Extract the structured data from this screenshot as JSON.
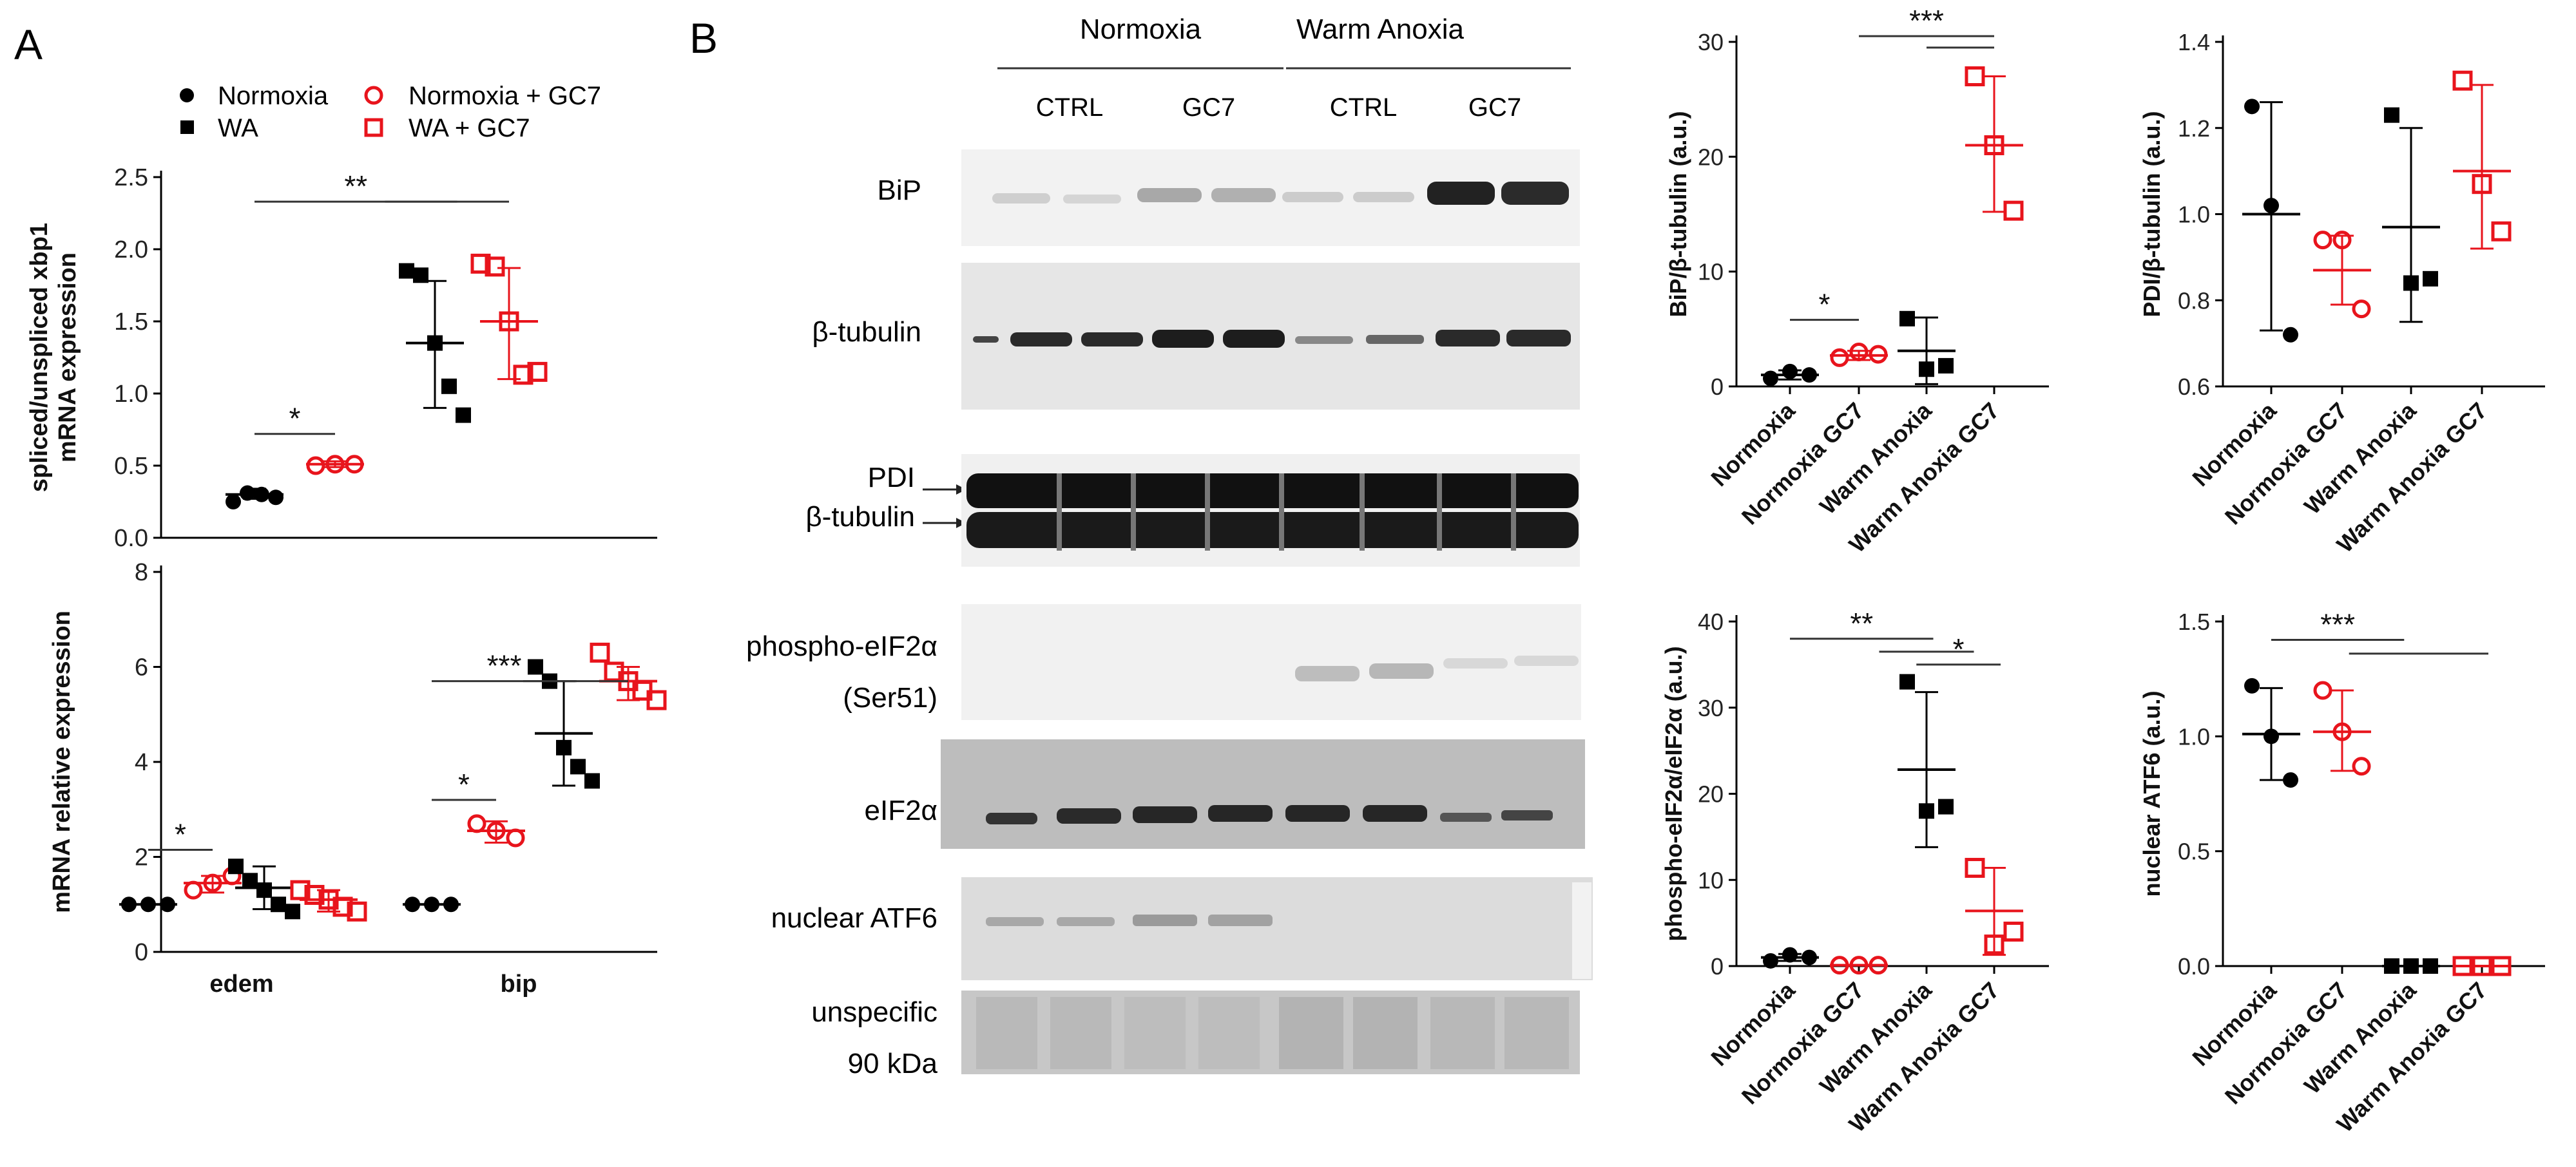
{
  "panel_a": {
    "label": "A",
    "legend": {
      "normoxia": "Normoxia",
      "wa": "WA",
      "normoxia_gc7": "Normoxia + GC7",
      "wa_gc7": "WA + GC7"
    }
  },
  "panel_b": {
    "label": "B",
    "blot": {
      "group_normoxia": "Normoxia",
      "group_warm_anoxia": "Warm Anoxia",
      "cond_ctrl": "CTRL",
      "cond_gc7": "GC7",
      "row_bip": "BiP",
      "row_btub": "β-tubulin",
      "row_pdi": "PDI",
      "row_btub2": "β-tubulin",
      "row_peif_1": "phospho-eIF2α",
      "row_peif_2": "(Ser51)",
      "row_eif": "eIF2α",
      "row_atf6": "nuclear ATF6",
      "row_unspec_1": "unspecific",
      "row_unspec_2": "90 kDa"
    }
  },
  "colors": {
    "control": "#000000",
    "gc7": "#e8141c"
  },
  "chart_data": [
    {
      "id": "xbp1",
      "type": "scatter",
      "ylabel": [
        "spliced/unspliced xbp1",
        "mRNA expression"
      ],
      "yticks": [
        "0.0",
        "0.5",
        "1.0",
        "1.5",
        "2.0",
        "2.5"
      ],
      "ylim": [
        0,
        2.5
      ],
      "categories": [
        "",
        "",
        "",
        ""
      ],
      "groups": [
        {
          "name": "Normoxia",
          "marker": "circle",
          "filled": true,
          "mean": 0.3,
          "err": [
            0.27,
            0.34
          ],
          "points": [
            0.25,
            0.31,
            0.3,
            0.28
          ]
        },
        {
          "name": "Normoxia + GC7",
          "marker": "circle",
          "filled": false,
          "mean": 0.51,
          "err": [
            0.49,
            0.53
          ],
          "points": [
            0.5,
            0.51,
            0.51
          ]
        },
        {
          "name": "WA",
          "marker": "square",
          "filled": true,
          "mean": 1.35,
          "err": [
            0.9,
            1.78
          ],
          "points": [
            1.85,
            1.82,
            1.35,
            1.05,
            0.85
          ]
        },
        {
          "name": "WA + GC7",
          "marker": "square",
          "filled": false,
          "mean": 1.5,
          "err": [
            1.1,
            1.87
          ],
          "points": [
            1.9,
            1.88,
            1.5,
            1.13,
            1.15
          ]
        }
      ],
      "annotations": [
        {
          "text": "*",
          "from": 0,
          "to": 1,
          "y": 0.72
        },
        {
          "text": "**",
          "from": 0,
          "to": 2.3,
          "y": 2.33
        },
        {
          "text": "",
          "from": 1.5,
          "to": 3,
          "y": 2.33
        }
      ]
    },
    {
      "id": "mrna",
      "type": "scatter",
      "ylabel": [
        "mRNA relative expression"
      ],
      "yticks": [
        "0",
        "2",
        "4",
        "6",
        "8"
      ],
      "ylim": [
        0,
        8
      ],
      "categories": [
        "edem",
        "bip"
      ],
      "groups": [
        {
          "name": "Normoxia",
          "category": "edem",
          "marker": "circle",
          "filled": true,
          "mean": 1.0,
          "err": [
            1.0,
            1.0
          ],
          "points": [
            1.0,
            1.0,
            1.0
          ]
        },
        {
          "name": "Normoxia + GC7",
          "category": "edem",
          "marker": "circle",
          "filled": false,
          "mean": 1.45,
          "err": [
            1.25,
            1.6
          ],
          "points": [
            1.3,
            1.45,
            1.6
          ]
        },
        {
          "name": "WA",
          "category": "edem",
          "marker": "square",
          "filled": true,
          "mean": 1.35,
          "err": [
            0.9,
            1.8
          ],
          "points": [
            1.8,
            1.5,
            1.3,
            1.0,
            0.85
          ]
        },
        {
          "name": "WA + GC7",
          "category": "edem",
          "marker": "square",
          "filled": false,
          "mean": 1.1,
          "err": [
            0.85,
            1.3
          ],
          "points": [
            1.3,
            1.2,
            1.1,
            0.95,
            0.85
          ]
        },
        {
          "name": "Normoxia",
          "category": "bip",
          "marker": "circle",
          "filled": true,
          "mean": 1.0,
          "err": [
            1.0,
            1.0
          ],
          "points": [
            1.0,
            1.0,
            1.0
          ]
        },
        {
          "name": "Normoxia + GC7",
          "category": "bip",
          "marker": "circle",
          "filled": false,
          "mean": 2.55,
          "err": [
            2.3,
            2.75
          ],
          "points": [
            2.7,
            2.55,
            2.4
          ]
        },
        {
          "name": "WA",
          "category": "bip",
          "marker": "square",
          "filled": true,
          "mean": 4.6,
          "err": [
            3.5,
            5.7
          ],
          "points": [
            6.0,
            5.7,
            4.3,
            3.9,
            3.6
          ]
        },
        {
          "name": "WA + GC7",
          "category": "bip",
          "marker": "square",
          "filled": false,
          "mean": 5.7,
          "err": [
            5.3,
            6.0
          ],
          "points": [
            6.3,
            5.9,
            5.7,
            5.5,
            5.3
          ]
        }
      ],
      "annotations": [
        {
          "text": "*",
          "from": 0,
          "to": 1,
          "y": 2.15
        },
        {
          "text": "*",
          "from": 4,
          "to": 5,
          "y": 3.2
        },
        {
          "text": "***",
          "from": 4,
          "to": 6.2,
          "y": 5.7
        },
        {
          "text": "",
          "from": 5.4,
          "to": 7,
          "y": 5.7
        }
      ]
    },
    {
      "id": "bip",
      "type": "scatter",
      "ylabel": [
        "BiP/β-tubulin (a.u.)"
      ],
      "yticks": [
        "0",
        "10",
        "20",
        "30"
      ],
      "ylim": [
        0,
        30
      ],
      "categories": [
        "Normoxia",
        "Normoxia GC7",
        "Warm Anoxia",
        "Warm Anoxia GC7"
      ],
      "groups": [
        {
          "name": "Normoxia",
          "marker": "circle",
          "filled": true,
          "mean": 1.0,
          "err": [
            0.6,
            1.4
          ],
          "points": [
            0.7,
            1.3,
            1.0
          ]
        },
        {
          "name": "Normoxia GC7",
          "marker": "circle",
          "filled": false,
          "mean": 2.7,
          "err": [
            2.3,
            3.1
          ],
          "points": [
            2.5,
            3.0,
            2.8
          ]
        },
        {
          "name": "Warm Anoxia",
          "marker": "square",
          "filled": true,
          "mean": 3.1,
          "err": [
            0.2,
            6.0
          ],
          "points": [
            5.9,
            1.5,
            1.8
          ]
        },
        {
          "name": "Warm Anoxia GC7",
          "marker": "square",
          "filled": false,
          "mean": 21.0,
          "err": [
            15.2,
            27.0
          ],
          "points": [
            27.0,
            21.0,
            15.3
          ]
        }
      ],
      "annotations": [
        {
          "text": "*",
          "from": 0,
          "to": 1,
          "y": 5.8
        },
        {
          "text": "***",
          "from": 1,
          "to": 3,
          "y": 30.5
        },
        {
          "text": "",
          "from": 2,
          "to": 3,
          "y": 29.5
        }
      ]
    },
    {
      "id": "pdi",
      "type": "scatter",
      "ylabel": [
        "PDI/β-tubulin (a.u.)"
      ],
      "yticks": [
        "0.6",
        "0.8",
        "1.0",
        "1.2",
        "1.4"
      ],
      "ylim": [
        0.6,
        1.4
      ],
      "categories": [
        "Normoxia",
        "Normoxia GC7",
        "Warm Anoxia",
        "Warm Anoxia GC7"
      ],
      "groups": [
        {
          "name": "Normoxia",
          "marker": "circle",
          "filled": true,
          "mean": 1.0,
          "err": [
            0.73,
            1.26
          ],
          "points": [
            1.25,
            1.02,
            0.72
          ]
        },
        {
          "name": "Normoxia GC7",
          "marker": "circle",
          "filled": false,
          "mean": 0.87,
          "err": [
            0.79,
            0.95
          ],
          "points": [
            0.94,
            0.94,
            0.78
          ]
        },
        {
          "name": "Warm Anoxia",
          "marker": "square",
          "filled": true,
          "mean": 0.97,
          "err": [
            0.75,
            1.2
          ],
          "points": [
            1.23,
            0.84,
            0.85
          ]
        },
        {
          "name": "Warm Anoxia GC7",
          "marker": "square",
          "filled": false,
          "mean": 1.1,
          "err": [
            0.92,
            1.3
          ],
          "points": [
            1.31,
            1.07,
            0.96
          ]
        }
      ],
      "annotations": []
    },
    {
      "id": "peif",
      "type": "scatter",
      "ylabel": [
        "phospho-eIF2α/eIF2α (a.u.)"
      ],
      "yticks": [
        "0",
        "10",
        "20",
        "30",
        "40"
      ],
      "ylim": [
        0,
        40
      ],
      "categories": [
        "Normoxia",
        "Normoxia GC7",
        "Warm Anoxia",
        "Warm Anoxia GC7"
      ],
      "groups": [
        {
          "name": "Normoxia",
          "marker": "circle",
          "filled": true,
          "mean": 1.0,
          "err": [
            0.6,
            1.4
          ],
          "points": [
            0.6,
            1.3,
            1.0
          ]
        },
        {
          "name": "Normoxia GC7",
          "marker": "circle",
          "filled": false,
          "mean": 0.1,
          "err": [
            0.1,
            0.1
          ],
          "points": [
            0.1,
            0.1,
            0.1
          ]
        },
        {
          "name": "Warm Anoxia",
          "marker": "square",
          "filled": true,
          "mean": 22.8,
          "err": [
            13.8,
            31.8
          ],
          "points": [
            33.0,
            18.0,
            18.5
          ]
        },
        {
          "name": "Warm Anoxia GC7",
          "marker": "square",
          "filled": false,
          "mean": 6.4,
          "err": [
            1.3,
            11.4
          ],
          "points": [
            11.4,
            2.5,
            4.0
          ]
        }
      ],
      "annotations": [
        {
          "text": "**",
          "from": 0,
          "to": 2.1,
          "y": 38.0
        },
        {
          "text": "",
          "from": 1.3,
          "to": 2.7,
          "y": 36.5
        },
        {
          "text": "*",
          "from": 1.85,
          "to": 3.1,
          "y": 35.0
        }
      ]
    },
    {
      "id": "atf6",
      "type": "scatter",
      "ylabel": [
        "nuclear ATF6 (a.u.)"
      ],
      "yticks": [
        "0.0",
        "0.5",
        "1.0",
        "1.5"
      ],
      "ylim": [
        0,
        1.5
      ],
      "categories": [
        "Normoxia",
        "Normoxia GC7",
        "Warm Anoxia",
        "Warm Anoxia GC7"
      ],
      "groups": [
        {
          "name": "Normoxia",
          "marker": "circle",
          "filled": true,
          "mean": 1.01,
          "err": [
            0.81,
            1.21
          ],
          "points": [
            1.22,
            1.0,
            0.81
          ]
        },
        {
          "name": "Normoxia GC7",
          "marker": "circle",
          "filled": false,
          "mean": 1.02,
          "err": [
            0.85,
            1.2
          ],
          "points": [
            1.2,
            1.02,
            0.87
          ]
        },
        {
          "name": "Warm Anoxia",
          "marker": "square",
          "filled": true,
          "mean": 0.0,
          "err": [
            0,
            0
          ],
          "points": [
            0,
            0,
            0
          ]
        },
        {
          "name": "Warm Anoxia GC7",
          "marker": "square",
          "filled": false,
          "mean": 0.0,
          "err": [
            0,
            0
          ],
          "points": [
            0,
            0,
            0
          ]
        }
      ],
      "annotations": [
        {
          "text": "***",
          "from": 0,
          "to": 1.9,
          "y": 1.42
        },
        {
          "text": "",
          "from": 1.1,
          "to": 3.1,
          "y": 1.36
        }
      ]
    }
  ]
}
